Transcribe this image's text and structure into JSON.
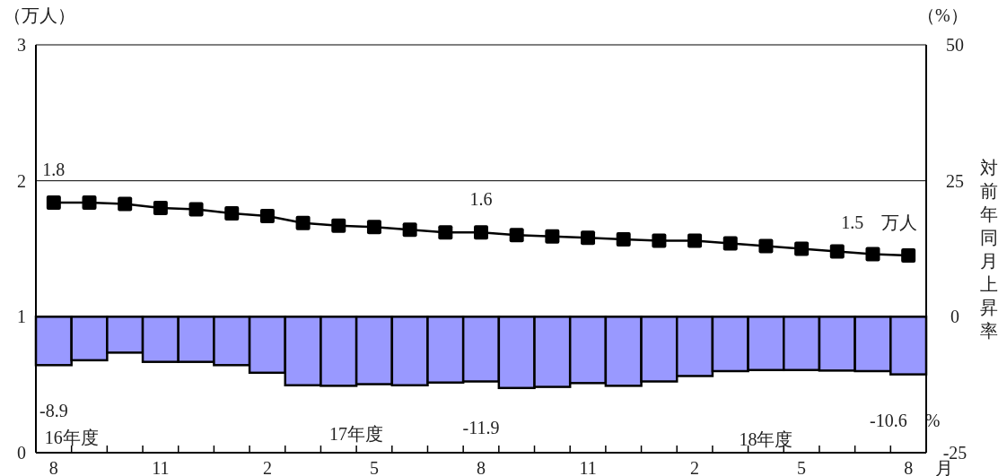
{
  "chart_data": {
    "type": "line",
    "ylabel": "（万人）",
    "y2label": "対前年同月上昇率",
    "xlabel": "月",
    "annotations": [
      "（%）",
      "16年度",
      "17年度",
      "18年度"
    ],
    "categories": [
      "8",
      null,
      null,
      "11",
      null,
      null,
      "2",
      null,
      null,
      "5",
      null,
      null,
      "8",
      null,
      null,
      "11",
      null,
      null,
      "2",
      null,
      null,
      "5",
      null,
      null,
      "8"
    ],
    "ylim": [
      0,
      3
    ],
    "yticks": [
      0,
      1,
      2,
      3
    ],
    "y2lim": [
      -25,
      50
    ],
    "y2ticks": [
      -25,
      0,
      25,
      50
    ],
    "grid": "y",
    "marker": "square",
    "line_style": "solid",
    "series": [
      {
        "type": "bar",
        "axis": "y2",
        "color": "#9999ff",
        "values": [
          -8.9,
          -8.0,
          -6.6,
          -8.3,
          -8.3,
          -8.9,
          -10.3,
          -12.6,
          -12.7,
          -12.4,
          -12.6,
          -12.1,
          -11.9,
          -13.1,
          -12.9,
          -12.2,
          -12.7,
          -11.9,
          -10.9,
          -10.0,
          -9.8,
          -9.8,
          -9.9,
          -10.0,
          -10.6
        ],
        "value_labels": [
          "-8.9",
          null,
          null,
          null,
          null,
          null,
          null,
          null,
          null,
          null,
          null,
          null,
          "-11.9",
          null,
          null,
          null,
          null,
          null,
          null,
          null,
          null,
          null,
          null,
          null,
          "-10.6　%"
        ]
      },
      {
        "color": "#000000",
        "values": [
          1.84,
          1.84,
          1.83,
          1.8,
          1.79,
          1.76,
          1.74,
          1.69,
          1.67,
          1.66,
          1.64,
          1.62,
          1.62,
          1.6,
          1.59,
          1.58,
          1.57,
          1.56,
          1.56,
          1.54,
          1.52,
          1.5,
          1.48,
          1.46,
          1.45
        ],
        "value_labels": [
          "1.8",
          null,
          null,
          null,
          null,
          null,
          null,
          null,
          null,
          null,
          null,
          null,
          "1.6",
          null,
          null,
          null,
          null,
          null,
          null,
          null,
          null,
          null,
          null,
          null,
          "1.5　万人"
        ]
      }
    ]
  }
}
